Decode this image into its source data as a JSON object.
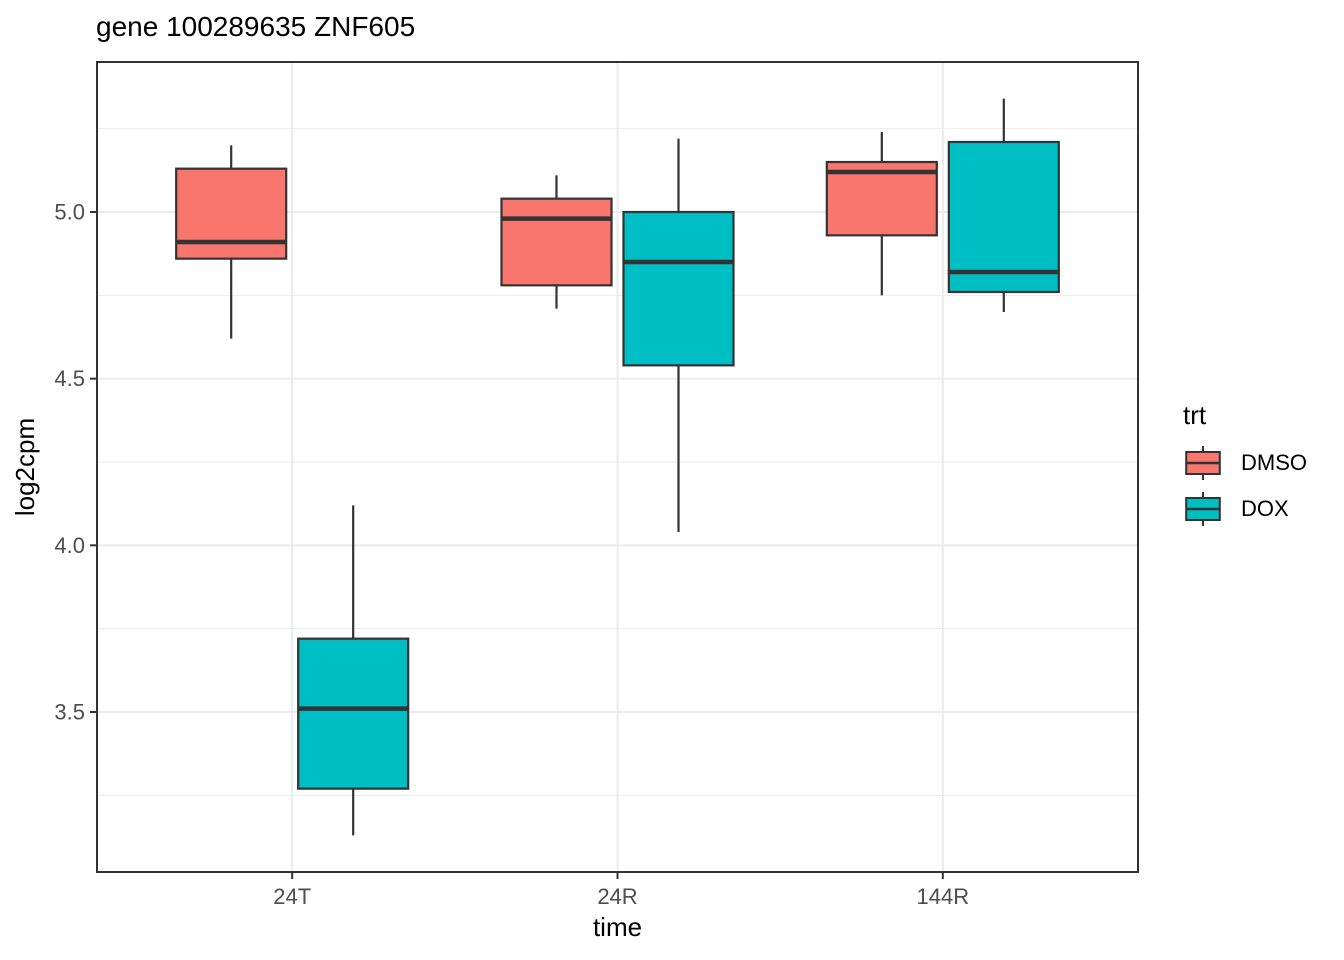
{
  "title": "gene 100289635 ZNF605",
  "axes": {
    "x": {
      "label": "time",
      "categories": [
        "24T",
        "24R",
        "144R"
      ]
    },
    "y": {
      "label": "log2cpm",
      "tick_labels": [
        "5.0",
        "4.5",
        "4.0",
        "3.5"
      ]
    }
  },
  "legend": {
    "title": "trt",
    "position": "right",
    "items": [
      {
        "label": "DMSO",
        "color": "#F8766D"
      },
      {
        "label": "DOX",
        "color": "#00BFC4"
      }
    ]
  },
  "colors": {
    "dmso_fill": "#F8766D",
    "dox_fill": "#00BFC4",
    "box_stroke": "#333333",
    "panel_border": "#333333",
    "grid": "#EBEBEB",
    "tick_mark": "#333333",
    "tick_label": "#4D4D4D",
    "background": "#FFFFFF"
  },
  "chart_data": {
    "type": "boxplot",
    "title": "gene 100289635 ZNF605",
    "xlabel": "time",
    "ylabel": "log2cpm",
    "categories": [
      "24T",
      "24R",
      "144R"
    ],
    "ylim": [
      3.02,
      5.45
    ],
    "yticks": [
      3.5,
      4.0,
      4.5,
      5.0
    ],
    "yticks_minor": [
      3.25,
      3.75,
      4.25,
      4.75,
      5.25
    ],
    "grid": true,
    "legend_title": "trt",
    "legend_position": "right",
    "series": [
      {
        "name": "DMSO",
        "color": "#F8766D",
        "boxes": [
          {
            "category": "24T",
            "min": 4.62,
            "q1": 4.86,
            "median": 4.91,
            "q3": 5.13,
            "max": 5.2
          },
          {
            "category": "24R",
            "min": 4.71,
            "q1": 4.78,
            "median": 4.98,
            "q3": 5.04,
            "max": 5.11
          },
          {
            "category": "144R",
            "min": 4.75,
            "q1": 4.93,
            "median": 5.12,
            "q3": 5.15,
            "max": 5.24
          }
        ]
      },
      {
        "name": "DOX",
        "color": "#00BFC4",
        "boxes": [
          {
            "category": "24T",
            "min": 3.13,
            "q1": 3.27,
            "median": 3.51,
            "q3": 3.72,
            "max": 4.12
          },
          {
            "category": "24R",
            "min": 4.04,
            "q1": 4.54,
            "median": 4.85,
            "q3": 5.0,
            "max": 5.22
          },
          {
            "category": "144R",
            "min": 4.7,
            "q1": 4.76,
            "median": 4.82,
            "q3": 5.21,
            "max": 5.34
          }
        ]
      }
    ]
  }
}
